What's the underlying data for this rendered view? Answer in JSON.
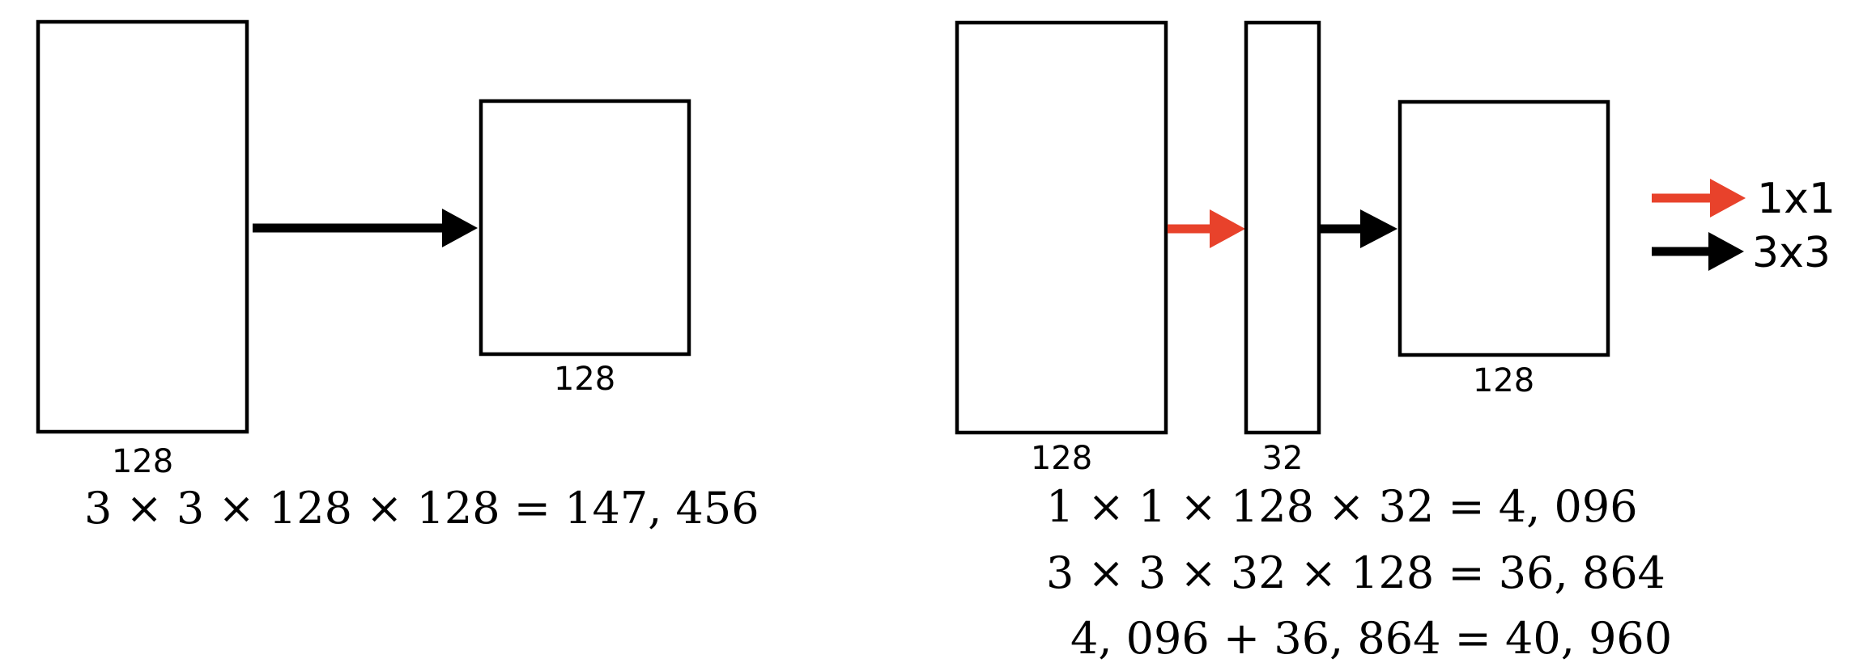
{
  "colors": {
    "conv1x1_arrow": "#e8422b",
    "conv3x3_arrow": "#000000",
    "box_stroke": "#000000"
  },
  "left_panel": {
    "input_channels_label": "128",
    "output_channels_label": "128",
    "formula": "3 × 3 × 128 × 128 = 147, 456"
  },
  "right_panel": {
    "input_channels_label": "128",
    "bottleneck_channels_label": "32",
    "output_channels_label": "128",
    "formulas": [
      "1 × 1 × 128 × 32 = 4, 096",
      "3 × 3 × 32 × 128 = 36, 864",
      "4, 096 + 36, 864 = 40, 960"
    ]
  },
  "legend": [
    {
      "label": "1x1",
      "color": "#e8422b",
      "icon": "red-arrow-icon"
    },
    {
      "label": "3x3",
      "color": "#000000",
      "icon": "black-arrow-icon"
    }
  ]
}
